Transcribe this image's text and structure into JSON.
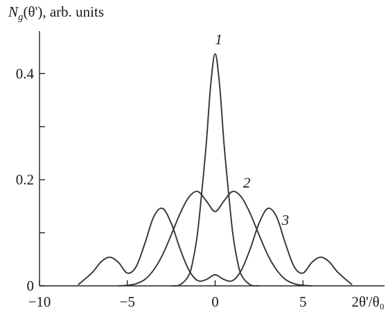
{
  "chart_data": {
    "type": "line",
    "title": "",
    "ylabel": {
      "symbol": "N",
      "subscript": "g",
      "rest": "(θ'), arb. units"
    },
    "xlabel": "2θ'/θ₀",
    "xlim": [
      -10,
      8.5
    ],
    "ylim": [
      0,
      0.48
    ],
    "x_ticks": [
      {
        "value": -10,
        "label": "−10"
      },
      {
        "value": -5,
        "label": "−5"
      },
      {
        "value": 0,
        "label": "0"
      },
      {
        "value": 5,
        "label": "5"
      }
    ],
    "y_ticks": [
      {
        "value": 0,
        "label": "0"
      },
      {
        "value": 0.1,
        "label": ""
      },
      {
        "value": 0.2,
        "label": "0.2"
      },
      {
        "value": 0.3,
        "label": ""
      },
      {
        "value": 0.4,
        "label": "0.4"
      }
    ],
    "grid": false,
    "legend": "none",
    "series": [
      {
        "name": "1",
        "x": [
          -2.5,
          -2,
          -1.5,
          -1.25,
          -1,
          -0.75,
          -0.5,
          -0.25,
          0,
          0.25,
          0.5,
          0.75,
          1,
          1.25,
          1.5,
          2,
          2.5
        ],
        "y": [
          0.0,
          0.002,
          0.02,
          0.05,
          0.1,
          0.18,
          0.27,
          0.38,
          0.437,
          0.38,
          0.27,
          0.18,
          0.1,
          0.05,
          0.02,
          0.002,
          0.0
        ]
      },
      {
        "name": "2",
        "x": [
          -5.5,
          -5,
          -4.5,
          -4,
          -3.5,
          -3,
          -2.5,
          -2,
          -1.5,
          -1,
          -0.5,
          0,
          0.5,
          1,
          1.5,
          2,
          2.5,
          3,
          3.5,
          4,
          4.5,
          5,
          5.5
        ],
        "y": [
          0.0,
          0.001,
          0.004,
          0.012,
          0.03,
          0.058,
          0.096,
          0.136,
          0.167,
          0.178,
          0.16,
          0.14,
          0.16,
          0.178,
          0.167,
          0.136,
          0.096,
          0.058,
          0.03,
          0.012,
          0.004,
          0.001,
          0.0
        ]
      },
      {
        "name": "3",
        "x": [
          -7.8,
          -7,
          -6.5,
          -6,
          -5.5,
          -5,
          -4.5,
          -4,
          -3.5,
          -3,
          -2.5,
          -2,
          -1.5,
          -1,
          -0.5,
          0,
          0.5,
          1,
          1.5,
          2,
          2.5,
          3,
          3.5,
          4,
          4.5,
          5,
          5.5,
          6,
          6.5,
          7,
          7.8
        ],
        "y": [
          0.002,
          0.025,
          0.045,
          0.054,
          0.044,
          0.024,
          0.036,
          0.08,
          0.13,
          0.146,
          0.118,
          0.07,
          0.03,
          0.01,
          0.012,
          0.021,
          0.012,
          0.01,
          0.03,
          0.07,
          0.118,
          0.146,
          0.13,
          0.08,
          0.036,
          0.024,
          0.044,
          0.054,
          0.045,
          0.025,
          0.002
        ]
      }
    ],
    "curve_labels": [
      {
        "series": "1",
        "text": "1",
        "x": 0.2,
        "y": 0.455
      },
      {
        "series": "2",
        "text": "2",
        "x": 1.8,
        "y": 0.185
      },
      {
        "series": "3",
        "text": "3",
        "x": 4.0,
        "y": 0.115
      }
    ]
  }
}
